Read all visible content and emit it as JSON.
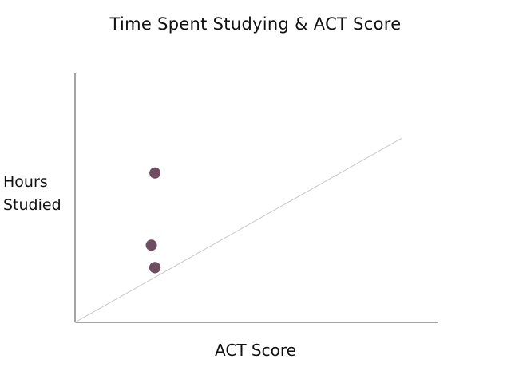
{
  "chart_data": {
    "type": "scatter",
    "title": "Time Spent Studying & ACT Score",
    "xlabel": "ACT Score",
    "ylabel_lines": [
      "Hours",
      "Studied"
    ],
    "xlim": [
      0,
      100
    ],
    "ylim": [
      0,
      100
    ],
    "grid": false,
    "trendline": {
      "x": [
        0,
        90
      ],
      "y": [
        0,
        74
      ]
    },
    "series": [
      {
        "color": "#6e4d60",
        "points": [
          {
            "x": 22,
            "y": 60
          },
          {
            "x": 21,
            "y": 31
          },
          {
            "x": 22,
            "y": 22
          },
          {
            "x": 22,
            "y": 22
          },
          {
            "x": 22,
            "y": 22
          },
          {
            "x": 22,
            "y": 22
          }
        ]
      }
    ]
  }
}
